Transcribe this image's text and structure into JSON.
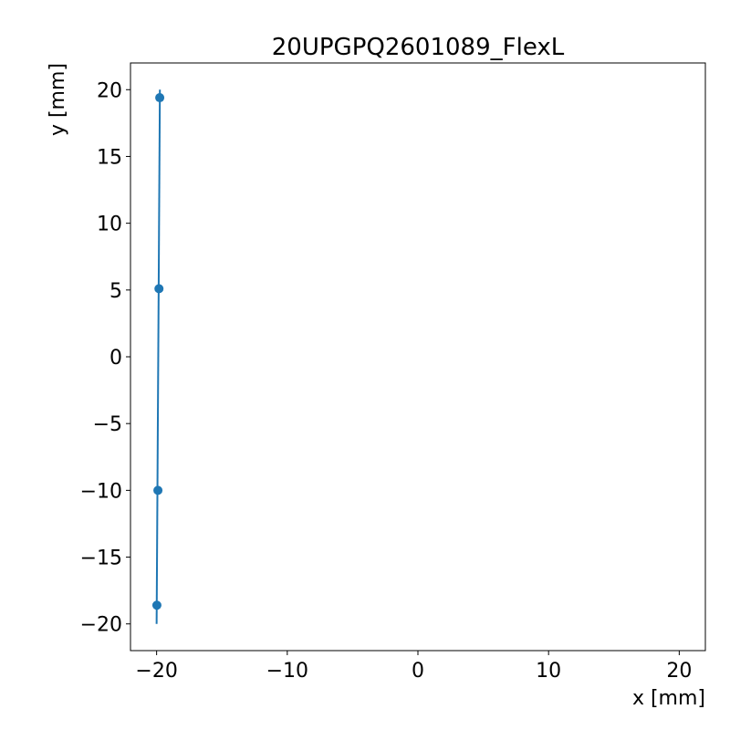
{
  "chart_data": {
    "type": "line",
    "title": "20UPGPQ2601089_FlexL",
    "xlabel": "x [mm]",
    "ylabel": "y [mm]",
    "xlim": [
      -22,
      22
    ],
    "ylim": [
      -22,
      22
    ],
    "xticks": [
      -20,
      -10,
      0,
      10,
      20
    ],
    "yticks": [
      -20,
      -15,
      -10,
      -5,
      0,
      5,
      10,
      15,
      20
    ],
    "xtick_labels": [
      "−20",
      "−10",
      "0",
      "10",
      "20"
    ],
    "ytick_labels": [
      "−20",
      "−15",
      "−10",
      "−5",
      "0",
      "5",
      "10",
      "15",
      "20"
    ],
    "grid": false,
    "series": [
      {
        "color": "#1f77b4",
        "line": {
          "x": [
            -20.0,
            -19.75
          ],
          "y": [
            -20.0,
            20.0
          ]
        },
        "points": {
          "x": [
            -19.98,
            -19.9,
            -19.82,
            -19.76
          ],
          "y": [
            -18.6,
            -10.0,
            5.1,
            19.4
          ]
        }
      }
    ]
  }
}
